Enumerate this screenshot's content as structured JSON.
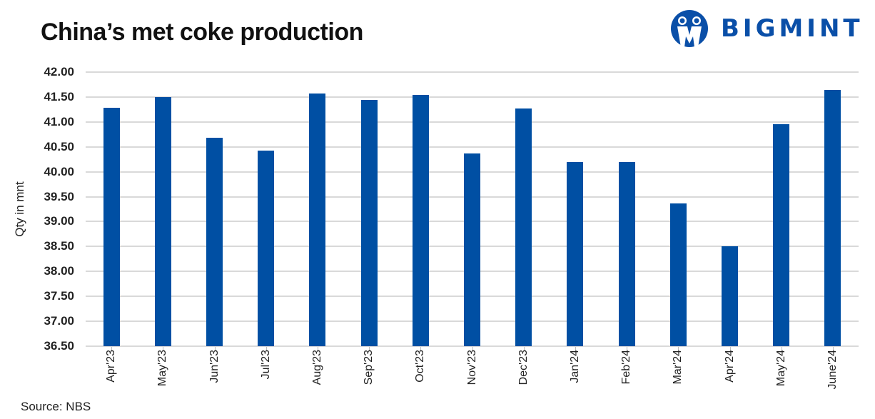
{
  "header": {
    "title": "China’s met coke production",
    "logo_text": "BIGMINT"
  },
  "footer": {
    "source": "Source: NBS"
  },
  "colors": {
    "bar": "#004fa3",
    "brand": "#0a4fa8",
    "grid": "#d9d9d9"
  },
  "chart_data": {
    "type": "bar",
    "title": "China’s met coke production",
    "xlabel": "",
    "ylabel": "Qty in mnt",
    "ylim": [
      36.5,
      42.0
    ],
    "yticks": [
      "42.00",
      "41.50",
      "41.00",
      "40.50",
      "40.00",
      "39.50",
      "39.00",
      "38.50",
      "38.00",
      "37.50",
      "37.00",
      "36.50"
    ],
    "grid": true,
    "legend": "none",
    "categories": [
      "Apr'23",
      "May'23",
      "Jun'23",
      "Jul'23",
      "Aug'23",
      "Sep'23",
      "Oct'23",
      "Nov'23",
      "Dec'23",
      "Jan'24",
      "Feb'24",
      "Mar'24",
      "Apr'24",
      "May'24",
      "June'24"
    ],
    "series": [
      {
        "name": "Met coke production",
        "values": [
          41.28,
          41.5,
          40.68,
          40.42,
          41.57,
          41.44,
          41.54,
          40.37,
          41.27,
          40.2,
          40.2,
          39.37,
          38.5,
          40.95,
          41.64
        ]
      }
    ],
    "source": "Source: NBS"
  }
}
